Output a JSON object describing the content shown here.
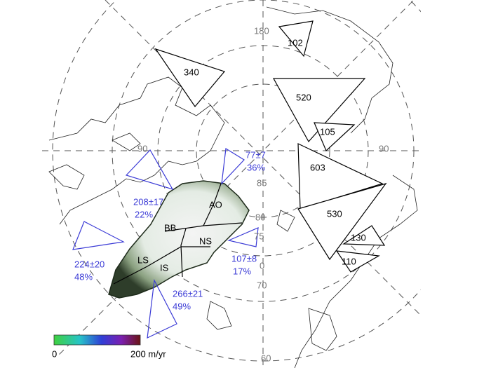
{
  "map": {
    "longitude_labels": [
      "180",
      "90",
      "90",
      "0"
    ],
    "latitude_labels": [
      "85",
      "80",
      "75",
      "70",
      "60"
    ],
    "flux_boxes": [
      {
        "value": 340
      },
      {
        "value": 102
      },
      {
        "value": 520
      },
      {
        "value": 105
      },
      {
        "value": 603
      },
      {
        "value": 530
      },
      {
        "value": 130
      },
      {
        "value": 110
      }
    ],
    "basin_estimates": [
      {
        "estimate": "77±7",
        "share": "36%"
      },
      {
        "estimate": "208±17",
        "share": "22%"
      },
      {
        "estimate": "224±20",
        "share": "48%"
      },
      {
        "estimate": "107±8",
        "share": "17%"
      },
      {
        "estimate": "266±21",
        "share": "49%"
      }
    ],
    "regions": [
      "AO",
      "BB",
      "NS",
      "LS",
      "IS"
    ],
    "colorbar": {
      "min": "0",
      "max": "200 m/yr"
    }
  }
}
